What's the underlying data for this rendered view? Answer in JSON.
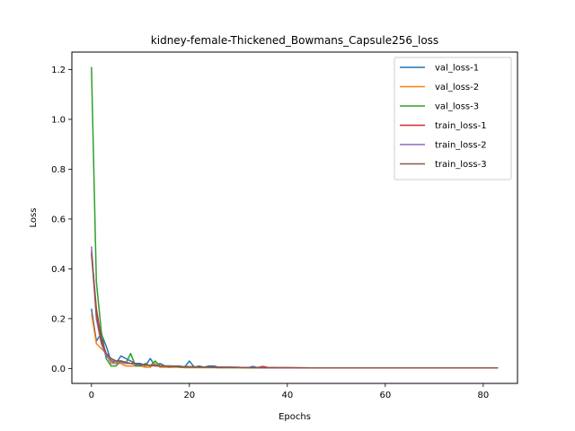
{
  "chart_data": {
    "type": "line",
    "title": "kidney-female-Thickened_Bowmans_Capsule256_loss",
    "xlabel": "Epochs",
    "ylabel": "Loss",
    "xlim": [
      -4,
      87
    ],
    "ylim": [
      -0.06,
      1.27
    ],
    "xticks": [
      0,
      20,
      40,
      60,
      80
    ],
    "yticks": [
      0.0,
      0.2,
      0.4,
      0.6,
      0.8,
      1.0,
      1.2
    ],
    "xtick_labels": [
      "0",
      "20",
      "40",
      "60",
      "80"
    ],
    "ytick_labels": [
      "0.0",
      "0.2",
      "0.4",
      "0.6",
      "0.8",
      "1.0",
      "1.2"
    ],
    "legend_position": "top-right",
    "series": [
      {
        "name": "val_loss-1",
        "color": "#1f77b4",
        "x": [
          0,
          1,
          2,
          3,
          4,
          5,
          6,
          7,
          8,
          9,
          10,
          11,
          12,
          13,
          14,
          15,
          16,
          17,
          18,
          19,
          20,
          21,
          22,
          23,
          24,
          25,
          26,
          27,
          28,
          29,
          30,
          31,
          32,
          33,
          34,
          35,
          36,
          37,
          38,
          39,
          40,
          45,
          50,
          55,
          60,
          65,
          70,
          75,
          80,
          83
        ],
        "y": [
          0.24,
          0.11,
          0.14,
          0.09,
          0.03,
          0.02,
          0.05,
          0.04,
          0.03,
          0.02,
          0.02,
          0.01,
          0.04,
          0.01,
          0.02,
          0.01,
          0.01,
          0.01,
          0.01,
          0.005,
          0.03,
          0.005,
          0.01,
          0.005,
          0.01,
          0.01,
          0.005,
          0.005,
          0.005,
          0.005,
          0.005,
          0.003,
          0.003,
          0.008,
          0.003,
          0.003,
          0.003,
          0.003,
          0.002,
          0.002,
          0.002,
          0.002,
          0.002,
          0.002,
          0.002,
          0.002,
          0.002,
          0.002,
          0.002,
          0.002
        ]
      },
      {
        "name": "val_loss-2",
        "color": "#ff7f0e",
        "x": [
          0,
          1,
          2,
          3,
          4,
          5,
          6,
          7,
          8,
          9,
          10,
          11,
          12,
          13,
          14,
          15,
          16,
          17,
          18,
          19,
          20,
          22,
          24,
          26,
          28,
          30,
          32,
          34,
          36,
          38,
          40,
          45,
          50,
          55,
          60,
          65,
          70,
          75,
          80,
          83
        ],
        "y": [
          0.22,
          0.1,
          0.08,
          0.06,
          0.02,
          0.02,
          0.02,
          0.01,
          0.01,
          0.01,
          0.01,
          0.005,
          0.005,
          0.02,
          0.005,
          0.005,
          0.005,
          0.005,
          0.005,
          0.003,
          0.003,
          0.003,
          0.003,
          0.003,
          0.003,
          0.003,
          0.002,
          0.002,
          0.002,
          0.002,
          0.002,
          0.002,
          0.002,
          0.002,
          0.002,
          0.002,
          0.002,
          0.002,
          0.002,
          0.002
        ]
      },
      {
        "name": "val_loss-3",
        "color": "#2ca02c",
        "x": [
          0,
          1,
          2,
          3,
          4,
          5,
          6,
          7,
          8,
          9,
          10,
          11,
          12,
          13,
          14,
          15,
          16,
          17,
          18,
          19,
          20,
          22,
          24,
          26,
          28,
          30,
          32,
          34,
          36,
          38,
          40,
          45,
          50,
          55,
          60,
          65,
          70,
          75,
          80,
          83
        ],
        "y": [
          1.21,
          0.35,
          0.15,
          0.04,
          0.01,
          0.01,
          0.03,
          0.02,
          0.06,
          0.01,
          0.01,
          0.02,
          0.01,
          0.03,
          0.01,
          0.01,
          0.005,
          0.01,
          0.005,
          0.005,
          0.005,
          0.005,
          0.005,
          0.003,
          0.003,
          0.003,
          0.003,
          0.003,
          0.002,
          0.002,
          0.002,
          0.002,
          0.002,
          0.002,
          0.002,
          0.002,
          0.002,
          0.002,
          0.002,
          0.002
        ]
      },
      {
        "name": "train_loss-1",
        "color": "#d62728",
        "x": [
          0,
          1,
          2,
          3,
          4,
          5,
          6,
          7,
          8,
          9,
          10,
          11,
          12,
          13,
          14,
          15,
          16,
          17,
          18,
          19,
          20,
          22,
          24,
          26,
          28,
          30,
          32,
          34,
          35,
          36,
          38,
          40,
          45,
          50,
          55,
          60,
          65,
          70,
          75,
          80,
          83
        ],
        "y": [
          0.47,
          0.24,
          0.12,
          0.06,
          0.04,
          0.03,
          0.03,
          0.025,
          0.02,
          0.02,
          0.015,
          0.015,
          0.012,
          0.012,
          0.01,
          0.01,
          0.01,
          0.008,
          0.008,
          0.007,
          0.007,
          0.006,
          0.006,
          0.005,
          0.005,
          0.004,
          0.004,
          0.004,
          0.008,
          0.004,
          0.003,
          0.003,
          0.002,
          0.002,
          0.002,
          0.002,
          0.002,
          0.002,
          0.002,
          0.002,
          0.002
        ]
      },
      {
        "name": "train_loss-2",
        "color": "#9467bd",
        "x": [
          0,
          1,
          2,
          3,
          4,
          5,
          6,
          7,
          8,
          9,
          10,
          11,
          12,
          13,
          14,
          15,
          16,
          17,
          18,
          19,
          20,
          22,
          24,
          26,
          28,
          30,
          32,
          34,
          36,
          38,
          40,
          45,
          50,
          55,
          60,
          65,
          70,
          75,
          80,
          83
        ],
        "y": [
          0.49,
          0.2,
          0.1,
          0.05,
          0.03,
          0.03,
          0.025,
          0.02,
          0.02,
          0.015,
          0.015,
          0.012,
          0.012,
          0.01,
          0.01,
          0.01,
          0.008,
          0.008,
          0.007,
          0.007,
          0.006,
          0.006,
          0.005,
          0.005,
          0.004,
          0.004,
          0.004,
          0.003,
          0.003,
          0.003,
          0.002,
          0.002,
          0.002,
          0.002,
          0.002,
          0.002,
          0.002,
          0.002,
          0.002,
          0.002
        ]
      },
      {
        "name": "train_loss-3",
        "color": "#8c564b",
        "x": [
          0,
          1,
          2,
          3,
          4,
          5,
          6,
          7,
          8,
          9,
          10,
          11,
          12,
          13,
          14,
          15,
          16,
          17,
          18,
          19,
          20,
          22,
          24,
          26,
          28,
          30,
          32,
          34,
          36,
          38,
          40,
          45,
          50,
          55,
          60,
          65,
          70,
          75,
          80,
          83
        ],
        "y": [
          0.46,
          0.22,
          0.11,
          0.06,
          0.04,
          0.03,
          0.03,
          0.025,
          0.02,
          0.02,
          0.015,
          0.015,
          0.012,
          0.012,
          0.01,
          0.01,
          0.01,
          0.008,
          0.008,
          0.007,
          0.007,
          0.006,
          0.006,
          0.005,
          0.005,
          0.004,
          0.004,
          0.003,
          0.003,
          0.003,
          0.003,
          0.002,
          0.002,
          0.002,
          0.002,
          0.002,
          0.002,
          0.002,
          0.002,
          0.002
        ]
      }
    ]
  }
}
